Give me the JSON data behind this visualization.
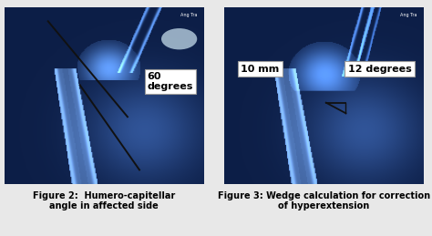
{
  "fig_width": 4.74,
  "fig_height": 2.59,
  "dpi": 100,
  "bg_color": "#e8e8e8",
  "left_panel": {
    "caption": "Figure 2:  Humero-capitellar\nangle in affected side",
    "annotation_box_text": "60\ndegrees"
  },
  "right_panel": {
    "caption": "Figure 3: Wedge calculation for correction\nof hyperextension",
    "annotation_left_text": "10 mm",
    "annotation_right_text": "12 degrees"
  },
  "caption_fontsize": 7.0,
  "caption_color": "#000000",
  "annotation_fontsize": 8,
  "line_color": "#111111",
  "panel_dark": "#0a1e35",
  "panel_mid": "#143058",
  "bone_bright": "#b8d8f0",
  "bone_mid": "#6aaad4",
  "bone_dark": "#2d6090"
}
